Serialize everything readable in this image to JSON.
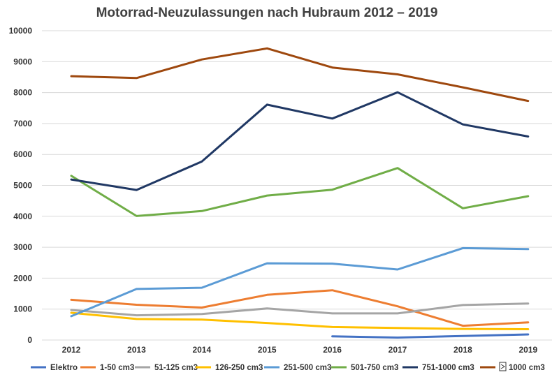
{
  "chart_data": {
    "type": "line",
    "title": "Motorrad-Neuzulassungen nach Hubraum 2012 – 2019",
    "xlabel": "",
    "ylabel": "",
    "x": [
      "2012",
      "2013",
      "2014",
      "2015",
      "2016",
      "2017",
      "2018",
      "2019"
    ],
    "yticks": [
      "0",
      "1000",
      "2000",
      "3000",
      "4000",
      "5000",
      "6000",
      "7000",
      "8000",
      "9000",
      "10000"
    ],
    "ylim": [
      0,
      10000
    ],
    "grid": "horizontal",
    "legend_position": "bottom",
    "series": [
      {
        "name": "Elektro",
        "color": "#4472c4",
        "values": [
          null,
          null,
          null,
          null,
          120,
          80,
          130,
          180
        ]
      },
      {
        "name": "1-50 cm3",
        "color": "#ed7d31",
        "values": [
          1300,
          1140,
          1050,
          1460,
          1610,
          1090,
          460,
          570
        ]
      },
      {
        "name": "51-125 cm3",
        "color": "#a5a5a5",
        "values": [
          970,
          800,
          840,
          1020,
          860,
          860,
          1130,
          1180
        ]
      },
      {
        "name": "126-250 cm3",
        "color": "#ffc000",
        "values": [
          880,
          680,
          660,
          550,
          420,
          390,
          360,
          350
        ]
      },
      {
        "name": "251-500 cm3",
        "color": "#5b9bd5",
        "values": [
          770,
          1650,
          1690,
          2480,
          2470,
          2280,
          2970,
          2940
        ]
      },
      {
        "name": "501-750 cm3",
        "color": "#70ad47",
        "values": [
          5310,
          4010,
          4170,
          4670,
          4860,
          5560,
          4260,
          4650
        ]
      },
      {
        "name": "751-1000 cm3",
        "color": "#203864",
        "values": [
          5190,
          4850,
          5770,
          7610,
          7160,
          8010,
          6970,
          6580
        ]
      },
      {
        "name": "1000 cm3",
        "color": "#9e480e",
        "values": [
          8530,
          8470,
          9070,
          9430,
          8810,
          8590,
          8170,
          7730
        ]
      }
    ]
  }
}
